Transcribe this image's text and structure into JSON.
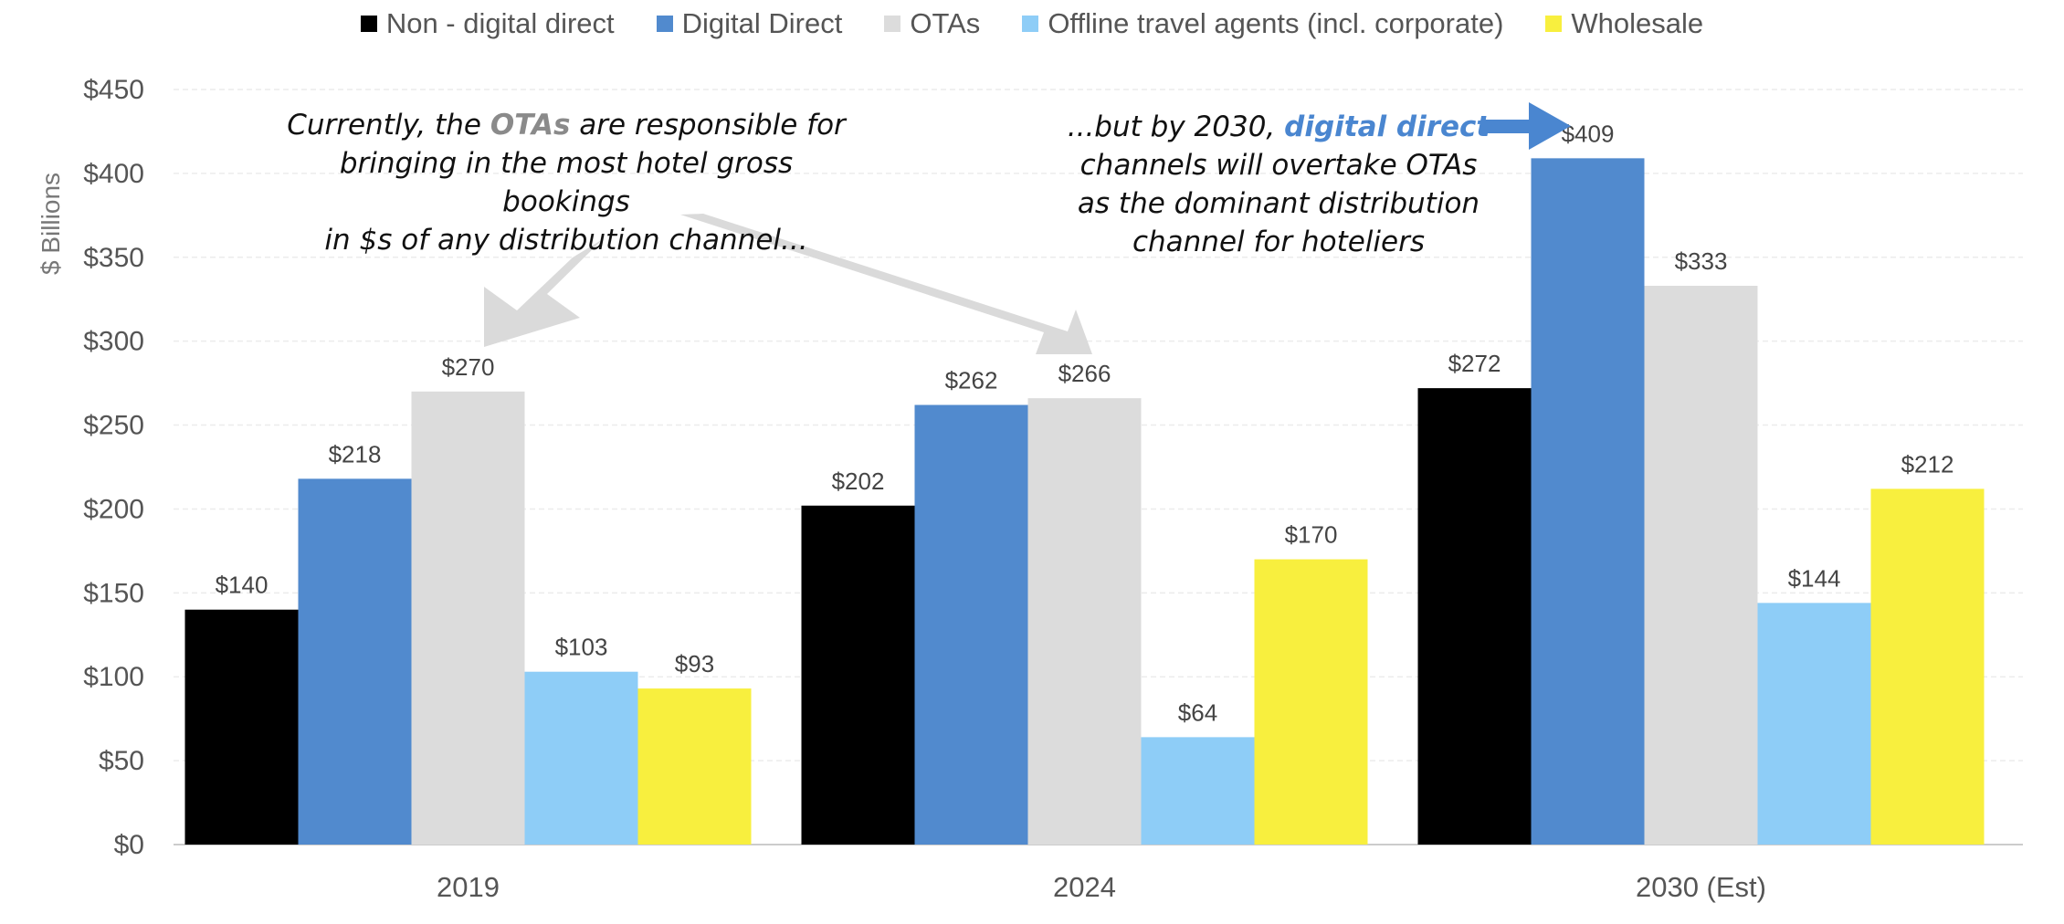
{
  "chart_data": {
    "type": "bar",
    "categories": [
      "2019",
      "2024",
      "2030 (Est)"
    ],
    "series": [
      {
        "name": "Non - digital direct",
        "color": "#000000",
        "values": [
          140,
          202,
          272
        ]
      },
      {
        "name": "Digital Direct",
        "color": "#518ace",
        "values": [
          218,
          262,
          409
        ]
      },
      {
        "name": "OTAs",
        "color": "#dcdcdc",
        "values": [
          270,
          266,
          333
        ]
      },
      {
        "name": "Offline travel agents (incl. corporate)",
        "color": "#8ecdf7",
        "values": [
          103,
          64,
          144
        ]
      },
      {
        "name": "Wholesale",
        "color": "#f8ef3e",
        "values": [
          93,
          170,
          212
        ]
      }
    ],
    "data_labels": [
      [
        "$140",
        "$202",
        "$272"
      ],
      [
        "$218",
        "$262",
        "$409"
      ],
      [
        "$270",
        "$266",
        "$333"
      ],
      [
        "$103",
        "$64",
        "$144"
      ],
      [
        "$93",
        "$170",
        "$212"
      ]
    ],
    "ylabel": "$ Billions",
    "ylim": [
      0,
      450
    ],
    "yticks": [
      0,
      50,
      100,
      150,
      200,
      250,
      300,
      350,
      400,
      450
    ],
    "ytick_labels": [
      "$0",
      "$50",
      "$100",
      "$150",
      "$200",
      "$250",
      "$300",
      "$350",
      "$400",
      "$450"
    ],
    "grid": true,
    "legend_position": "top-center",
    "annotations": {
      "left": {
        "line1_pre": "Currently, the ",
        "line1_hl": "OTAs",
        "line1_post": " are responsible for",
        "line2": "bringing in the most hotel gross bookings",
        "line3": "in $s of any distribution channel..."
      },
      "right": {
        "line1_pre": "...but by 2030, ",
        "line1_hl": "digital direct",
        "line2": "channels will overtake OTAs",
        "line3": "as the dominant distribution",
        "line4": "channel for hoteliers"
      }
    }
  }
}
